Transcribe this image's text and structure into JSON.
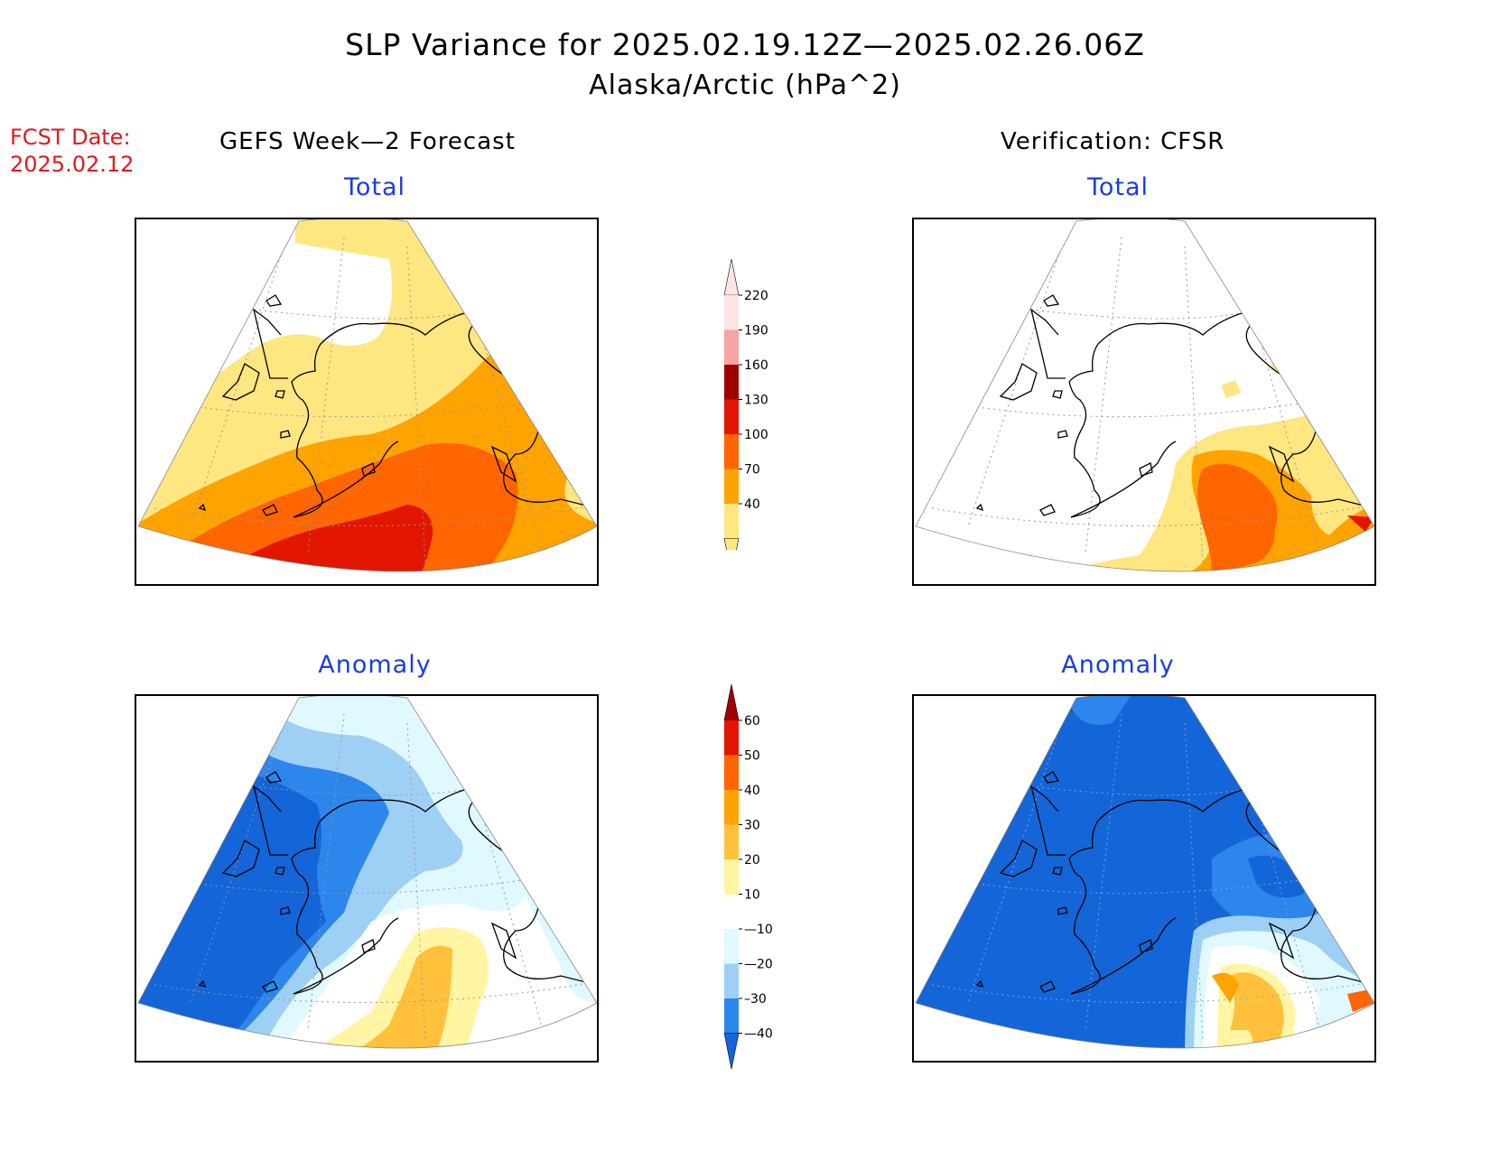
{
  "header": {
    "title": "SLP Variance for 2025.02.19.12Z—2025.02.26.06Z",
    "subtitle": "Alaska/Arctic (hPa^2)",
    "fcst_label": "FCST Date:",
    "fcst_date": "2025.02.12",
    "left_heading": "GEFS Week—2 Forecast",
    "right_heading": "Verification: CFSR"
  },
  "panels": {
    "forecast_total": {
      "title": "Total"
    },
    "verification_total": {
      "title": "Total"
    },
    "forecast_anomaly": {
      "title": "Anomaly"
    },
    "verification_anomaly": {
      "title": "Anomaly"
    }
  },
  "colorbars": {
    "total": {
      "levels": [
        "220",
        "190",
        "160",
        "130",
        "100",
        "70",
        "40"
      ],
      "colors": {
        "40_70": "#fee680",
        "70_100": "#ffa300",
        "100_130": "#ff6500",
        "130_160": "#e21600",
        "160_190": "#a00000",
        "190_220": "#f6a3a3",
        "above_220": "#fde3e3"
      }
    },
    "anomaly": {
      "levels": [
        "60",
        "50",
        "40",
        "30",
        "20",
        "10",
        "—10",
        "—20",
        "–30",
        "—40"
      ],
      "colors": {
        "above_60": "#a00000",
        "50_60": "#e21600",
        "40_50": "#ff6500",
        "30_40": "#ffa300",
        "20_30": "#ffc13c",
        "10_20": "#fff5a3",
        "m10_10": "#ffffff",
        "m20_m10": "#e0f8ff",
        "m30_m20": "#9ed0f6",
        "m40_m30": "#2c86ec",
        "below_m40": "#1465d8"
      }
    }
  }
}
